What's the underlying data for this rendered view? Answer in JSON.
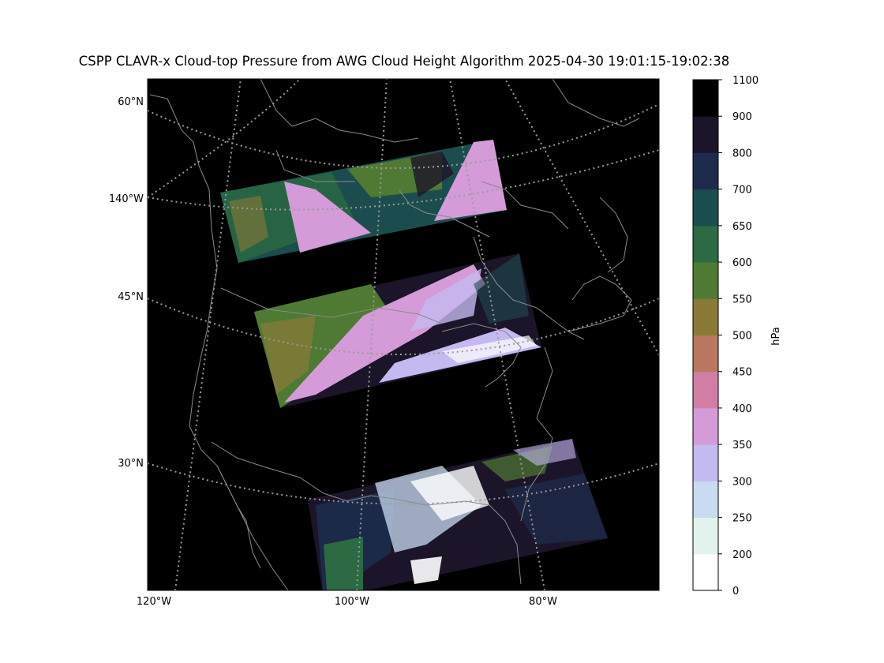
{
  "title": "CSPP CLAVR-x Cloud-top Pressure from AWG Cloud Height Algorithm 2025-04-30 19:01:15-19:02:38",
  "map": {
    "lat_labels": [
      "60°N",
      "140°W",
      "45°N",
      "30°N"
    ],
    "lon_labels": [
      "120°W",
      "100°W",
      "80°W"
    ],
    "background_color": "#000000",
    "coastline_color": "#8a8a8a",
    "gridline_color": "#9a9a9a",
    "gridline_style": "dotted"
  },
  "colorbar": {
    "label": "hPa",
    "tick_labels": [
      "0",
      "200",
      "250",
      "300",
      "350",
      "400",
      "450",
      "500",
      "550",
      "600",
      "650",
      "700",
      "800",
      "900",
      "1100"
    ],
    "colors": [
      "#ffffff",
      "#e2f3ee",
      "#c8dcf1",
      "#c4b9f0",
      "#d49bd8",
      "#d27ea4",
      "#b97760",
      "#8a7a37",
      "#4f7a33",
      "#2b6a42",
      "#1c4d4e",
      "#1d2c4c",
      "#1c1428",
      "#000000"
    ]
  },
  "swaths": {
    "count": 3,
    "dominant_colors": [
      "#d49bd8",
      "#4f7a33",
      "#1c4d4e",
      "#c4b9f0",
      "#1c1428"
    ]
  }
}
